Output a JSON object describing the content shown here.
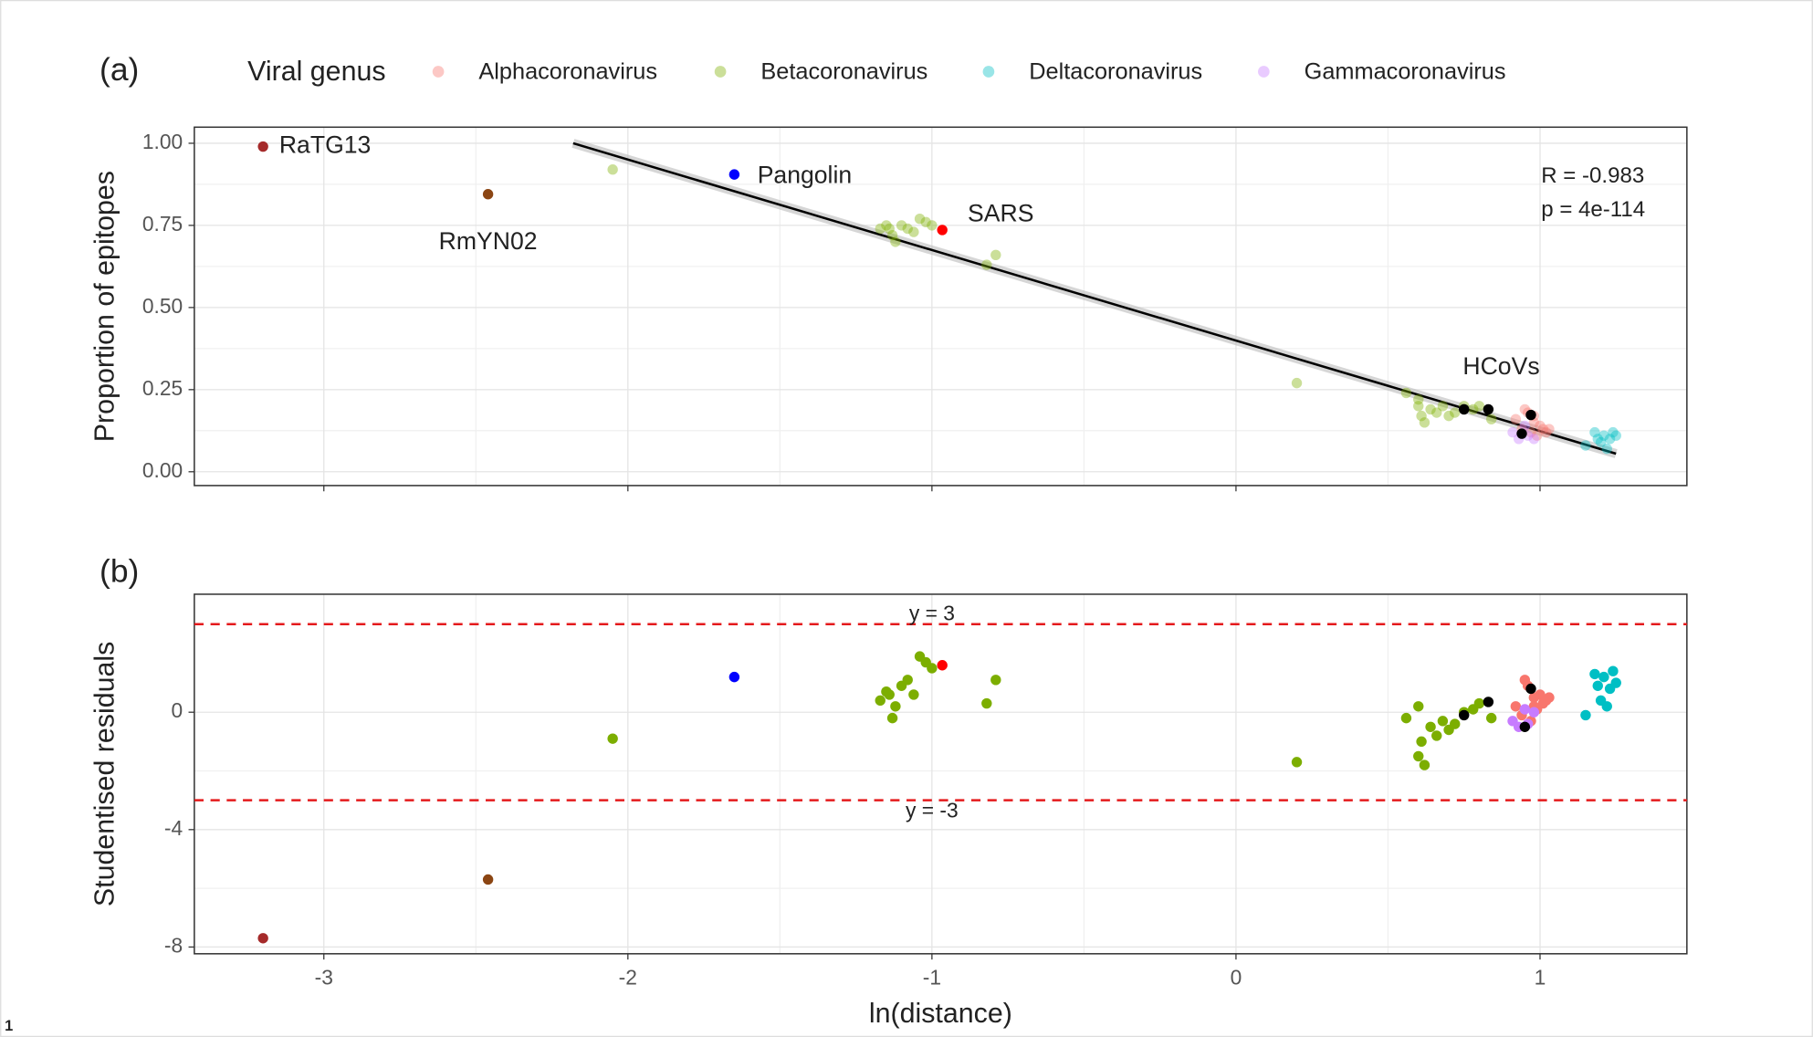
{
  "chart_data": [
    {
      "type": "scatter",
      "tag": "(a)",
      "y_label": "Proportion of epitopes",
      "legend_title": "Viral genus",
      "legend": "top",
      "grid": true,
      "point_alpha": 0.4,
      "xlim": [
        -3.426,
        1.483
      ],
      "ylim": [
        -0.042,
        1.049
      ],
      "xticks": [
        -3,
        -2,
        -1,
        0,
        1
      ],
      "yticks": [
        {
          "value": 0,
          "label": "0.00"
        },
        {
          "value": 0.25,
          "label": "0.25"
        },
        {
          "value": 0.5,
          "label": "0.50"
        },
        {
          "value": 0.75,
          "label": "0.75"
        },
        {
          "value": 1,
          "label": "1.00"
        }
      ],
      "series": [
        {
          "name": "Alphacoronavirus",
          "color": "#F8766D",
          "x": [
            0.92,
            0.94,
            0.96,
            0.97,
            0.98,
            0.99,
            1.0,
            1.01,
            1.02,
            0.95,
            0.98,
            1.03
          ],
          "values": [
            0.16,
            0.13,
            0.18,
            0.12,
            0.15,
            0.11,
            0.14,
            0.13,
            0.12,
            0.19,
            0.17,
            0.13
          ]
        },
        {
          "name": "Betacoronavirus",
          "color": "#7CAE00",
          "x": [
            -2.05,
            -1.17,
            -1.15,
            -1.13,
            -1.12,
            -1.1,
            -1.08,
            -1.06,
            -1.04,
            -1.02,
            -1.0,
            -1.14,
            -0.82,
            -0.79,
            0.2,
            0.56,
            0.6,
            0.61,
            0.62,
            0.64,
            0.66,
            0.68,
            0.7,
            0.72,
            0.75,
            0.78,
            0.8,
            0.84,
            0.6
          ],
          "values": [
            0.92,
            0.74,
            0.75,
            0.72,
            0.7,
            0.75,
            0.74,
            0.73,
            0.77,
            0.76,
            0.75,
            0.74,
            0.63,
            0.66,
            0.27,
            0.24,
            0.2,
            0.17,
            0.15,
            0.19,
            0.18,
            0.2,
            0.17,
            0.18,
            0.2,
            0.19,
            0.2,
            0.16,
            0.22
          ]
        },
        {
          "name": "Deltacoronavirus",
          "color": "#00BFC4",
          "x": [
            1.15,
            1.18,
            1.19,
            1.2,
            1.21,
            1.22,
            1.23,
            1.24,
            1.25
          ],
          "values": [
            0.08,
            0.12,
            0.1,
            0.09,
            0.11,
            0.07,
            0.1,
            0.12,
            0.11
          ]
        },
        {
          "name": "Gammacoronavirus",
          "color": "#C77CFF",
          "x": [
            0.91,
            0.93,
            0.95,
            0.96,
            0.98
          ],
          "values": [
            0.12,
            0.1,
            0.14,
            0.11,
            0.1
          ]
        }
      ],
      "highlights": [
        {
          "label": "RaTG13",
          "color": "#A52A2A",
          "x": [
            -3.2
          ],
          "y": [
            0.99
          ]
        },
        {
          "label": "RmYN02",
          "color": "#8B4513",
          "x": [
            -2.46
          ],
          "y": [
            0.845
          ]
        },
        {
          "label": "Pangolin",
          "color": "#0000FF",
          "x": [
            -1.65
          ],
          "y": [
            0.905
          ]
        },
        {
          "label": "SARS",
          "color": "#FF0000",
          "x": [
            -0.966
          ],
          "y": [
            0.736
          ]
        },
        {
          "label": "HCoVs",
          "color": "#000000",
          "x": [
            0.75,
            0.83,
            0.94,
            0.97
          ],
          "y": [
            0.19,
            0.19,
            0.116,
            0.173
          ]
        }
      ],
      "fit_line": {
        "x": [
          -2.18,
          1.25
        ],
        "y": [
          1.0,
          0.055
        ]
      },
      "stats": [
        "R = -0.983",
        "p = 4e-114"
      ]
    },
    {
      "type": "scatter",
      "tag": "(b)",
      "x_label": "ln(distance)",
      "y_label": "Studentised residuals",
      "grid": true,
      "xlim": [
        -3.426,
        1.483
      ],
      "ylim": [
        -8.23,
        4.02
      ],
      "xticks": [
        -3,
        -2,
        -1,
        0,
        1
      ],
      "yticks": [
        -8,
        -4,
        0
      ],
      "series": [
        {
          "color": "#F8766D",
          "x": [
            0.92,
            0.94,
            0.96,
            0.97,
            0.98,
            0.99,
            1.0,
            1.01,
            1.02,
            0.95,
            0.98,
            1.03
          ],
          "values": [
            0.2,
            -0.1,
            0.9,
            -0.3,
            0.5,
            0.1,
            0.6,
            0.3,
            0.4,
            1.1,
            0.2,
            0.5
          ]
        },
        {
          "color": "#7CAE00",
          "x": [
            -2.05,
            -1.17,
            -1.15,
            -1.13,
            -1.12,
            -1.1,
            -1.08,
            -1.06,
            -1.04,
            -1.02,
            -1.0,
            -1.14,
            -0.82,
            -0.79,
            0.2,
            0.56,
            0.6,
            0.61,
            0.62,
            0.64,
            0.66,
            0.68,
            0.7,
            0.72,
            0.75,
            0.78,
            0.8,
            0.84,
            0.6
          ],
          "values": [
            -0.9,
            0.4,
            0.7,
            -0.2,
            0.2,
            0.9,
            1.1,
            0.6,
            1.9,
            1.7,
            1.5,
            0.6,
            0.3,
            1.1,
            -1.7,
            -0.2,
            -1.5,
            -1.0,
            -1.8,
            -0.5,
            -0.8,
            -0.3,
            -0.6,
            -0.4,
            0.0,
            0.1,
            0.3,
            -0.2,
            0.2
          ]
        },
        {
          "color": "#00BFC4",
          "x": [
            1.15,
            1.18,
            1.19,
            1.2,
            1.21,
            1.22,
            1.23,
            1.24,
            1.25
          ],
          "values": [
            -0.1,
            1.3,
            0.9,
            0.4,
            1.2,
            0.2,
            0.8,
            1.4,
            1.0
          ]
        },
        {
          "color": "#C77CFF",
          "x": [
            0.91,
            0.93,
            0.95,
            0.96,
            0.98
          ],
          "values": [
            -0.3,
            -0.5,
            0.1,
            -0.4,
            0.0
          ]
        }
      ],
      "highlights": [
        {
          "color": "#A52A2A",
          "x": [
            -3.2
          ],
          "y": [
            -7.7
          ]
        },
        {
          "color": "#8B4513",
          "x": [
            -2.46
          ],
          "y": [
            -5.7
          ]
        },
        {
          "color": "#0000FF",
          "x": [
            -1.65
          ],
          "y": [
            1.2
          ]
        },
        {
          "color": "#FF0000",
          "x": [
            -0.966
          ],
          "y": [
            1.6
          ]
        },
        {
          "color": "#000000",
          "x": [
            0.75,
            0.83,
            0.95,
            0.97
          ],
          "y": [
            -0.1,
            0.35,
            -0.5,
            0.8
          ]
        }
      ],
      "ref_lines": [
        {
          "value": 3,
          "label": "y = 3"
        },
        {
          "value": -3,
          "label": "y = -3"
        }
      ],
      "ref_color": "#E41A1C"
    }
  ],
  "footnote": "1"
}
